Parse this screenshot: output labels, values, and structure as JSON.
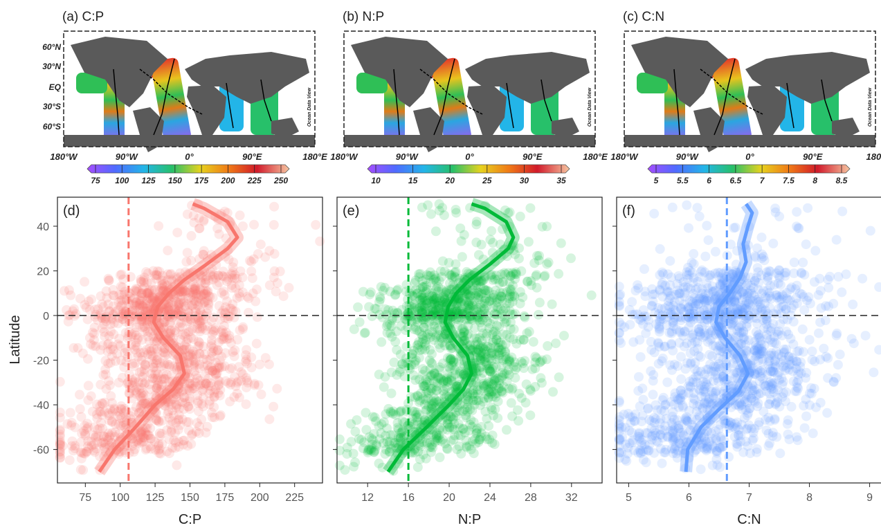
{
  "chart_data": {
    "type": "scatter",
    "ylabel": "Latitude",
    "ylim": [
      -75,
      53
    ],
    "yticks": [
      -60,
      -40,
      -20,
      0,
      20,
      40
    ],
    "maps": [
      {
        "label": "(a) C:P",
        "lat_labels": [
          "60°N",
          "30°N",
          "EQ",
          "30°S",
          "60°S"
        ],
        "lon_labels": [
          "180°W",
          "90°W",
          "0°",
          "90°E",
          "180°E"
        ],
        "colorbar_ticks": [
          "75",
          "100",
          "125",
          "150",
          "175",
          "200",
          "225",
          "250"
        ],
        "watermark": "Ocean Data View"
      },
      {
        "label": "(b) N:P",
        "lat_labels": [],
        "lon_labels": [
          "180°W",
          "90°W",
          "0°",
          "90°E",
          "180°E"
        ],
        "colorbar_ticks": [
          "10",
          "15",
          "20",
          "25",
          "30",
          "35"
        ],
        "watermark": "Ocean Data View"
      },
      {
        "label": "(c) C:N",
        "lat_labels": [],
        "lon_labels": [
          "180°W",
          "90°W",
          "0°",
          "90°E",
          "180°"
        ],
        "colorbar_ticks": [
          "5",
          "5.5",
          "6",
          "6.5",
          "7",
          "7.5",
          "8",
          "8.5"
        ],
        "watermark": "Ocean Data View"
      }
    ],
    "panels": [
      {
        "label": "(d)",
        "xlabel": "C:P",
        "color": "#f8766d",
        "xlim": [
          55,
          245
        ],
        "xticks": [
          75,
          100,
          125,
          150,
          175,
          200,
          225
        ],
        "ref_x": 106,
        "center_x": 130,
        "spread": 28,
        "fit": [
          [
            85,
            -70
          ],
          [
            96,
            -60
          ],
          [
            111,
            -50
          ],
          [
            125,
            -40
          ],
          [
            138,
            -33
          ],
          [
            146,
            -26
          ],
          [
            143,
            -18
          ],
          [
            131,
            -10
          ],
          [
            124,
            -3
          ],
          [
            127,
            4
          ],
          [
            135,
            10
          ],
          [
            146,
            16
          ],
          [
            162,
            23
          ],
          [
            177,
            30
          ],
          [
            184,
            35
          ],
          [
            177,
            42
          ],
          [
            160,
            48
          ],
          [
            152,
            50
          ]
        ]
      },
      {
        "label": "(e)",
        "xlabel": "N:P",
        "color": "#00ba38",
        "xlim": [
          9,
          35
        ],
        "xticks": [
          12,
          16,
          20,
          24,
          28,
          32
        ],
        "ref_x": 16,
        "center_x": 20.5,
        "spread": 3.5,
        "fit": [
          [
            14,
            -70
          ],
          [
            15.5,
            -60
          ],
          [
            17.8,
            -50
          ],
          [
            20,
            -40
          ],
          [
            21.4,
            -33
          ],
          [
            22.2,
            -26
          ],
          [
            21.8,
            -18
          ],
          [
            20.4,
            -10
          ],
          [
            19.6,
            -3
          ],
          [
            19.9,
            4
          ],
          [
            20.7,
            10
          ],
          [
            22,
            16
          ],
          [
            24,
            23
          ],
          [
            25.8,
            30
          ],
          [
            26.3,
            35
          ],
          [
            25.6,
            42
          ],
          [
            23.5,
            48
          ],
          [
            22.2,
            50
          ]
        ]
      },
      {
        "label": "(f)",
        "xlabel": "C:N",
        "color": "#619cff",
        "xlim": [
          4.8,
          9.2
        ],
        "xticks": [
          5,
          6,
          7,
          8,
          9
        ],
        "ref_x": 6.63,
        "center_x": 6.8,
        "spread": 0.75,
        "fit": [
          [
            5.95,
            -70
          ],
          [
            5.98,
            -60
          ],
          [
            6.2,
            -50
          ],
          [
            6.5,
            -42
          ],
          [
            6.82,
            -34
          ],
          [
            6.98,
            -26
          ],
          [
            6.85,
            -18
          ],
          [
            6.6,
            -10
          ],
          [
            6.45,
            -3
          ],
          [
            6.5,
            4
          ],
          [
            6.68,
            10
          ],
          [
            6.85,
            17
          ],
          [
            6.95,
            24
          ],
          [
            6.9,
            32
          ],
          [
            6.98,
            40
          ],
          [
            7.05,
            46
          ],
          [
            6.95,
            50
          ]
        ]
      }
    ]
  }
}
